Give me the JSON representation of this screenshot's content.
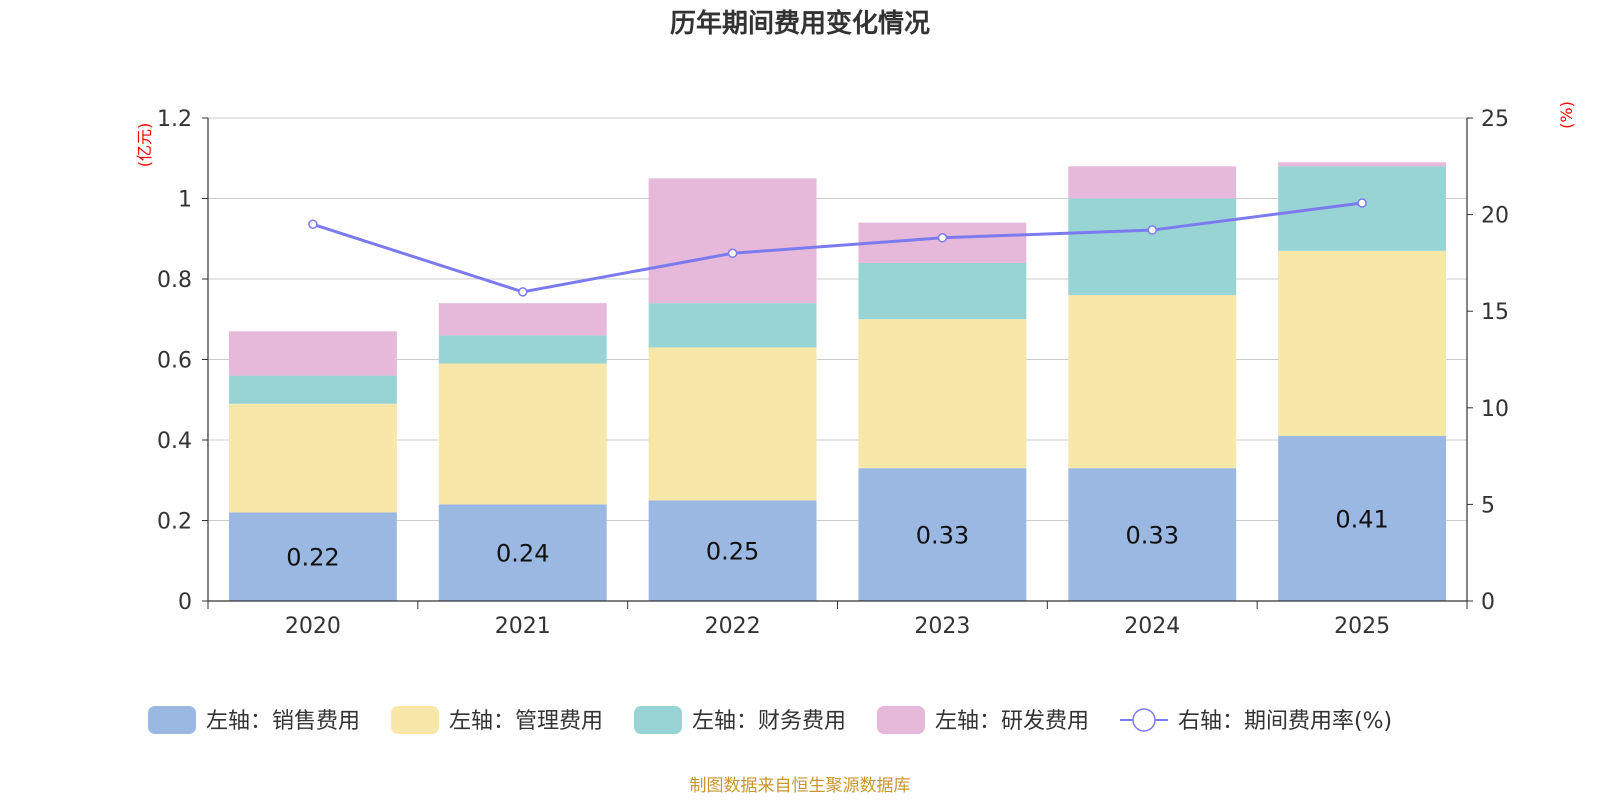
{
  "chart_data": {
    "type": "bar",
    "stacked": true,
    "title": "历年期间费用变化情况",
    "categories": [
      "2020",
      "2021",
      "2022",
      "2023",
      "2024",
      "2025"
    ],
    "left_axis": {
      "unit": "(亿元)",
      "ylim": [
        0,
        1.2
      ],
      "ticks": [
        "0",
        "0.2",
        "0.4",
        "0.6",
        "0.8",
        "1",
        "1.2"
      ]
    },
    "right_axis": {
      "unit": "(%)",
      "ylim": [
        0,
        25
      ],
      "ticks": [
        "0",
        "5",
        "10",
        "15",
        "20",
        "25"
      ]
    },
    "series": [
      {
        "name": "左轴：销售费用",
        "axis": "left",
        "type": "bar",
        "color": "#9bb8e2",
        "values": [
          0.22,
          0.24,
          0.25,
          0.33,
          0.33,
          0.41
        ],
        "labels": [
          "0.22",
          "0.24",
          "0.25",
          "0.33",
          "0.33",
          "0.41"
        ]
      },
      {
        "name": "左轴：管理费用",
        "axis": "left",
        "type": "bar",
        "color": "#f7e7a8",
        "values": [
          0.27,
          0.35,
          0.38,
          0.37,
          0.43,
          0.46
        ]
      },
      {
        "name": "左轴：财务费用",
        "axis": "left",
        "type": "bar",
        "color": "#98d4d4",
        "values": [
          0.07,
          0.07,
          0.11,
          0.14,
          0.24,
          0.21
        ]
      },
      {
        "name": "左轴：研发费用",
        "axis": "left",
        "type": "bar",
        "color": "#e6b8da",
        "values": [
          0.11,
          0.08,
          0.31,
          0.1,
          0.08,
          0.01
        ]
      },
      {
        "name": "右轴：期间费用率(%)",
        "axis": "right",
        "type": "line",
        "color": "#7b7bef",
        "values": [
          19.5,
          16.0,
          18.0,
          18.8,
          19.2,
          20.6
        ]
      }
    ]
  },
  "footer": {
    "source": "制图数据来自恒生聚源数据库"
  }
}
